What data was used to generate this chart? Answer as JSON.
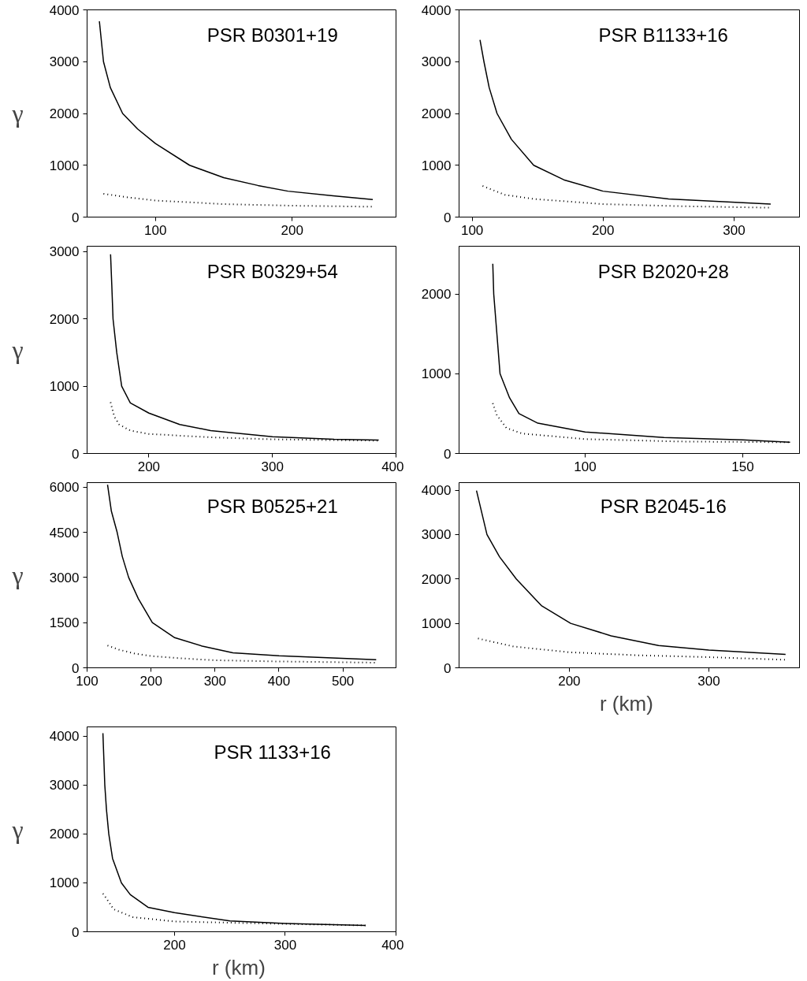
{
  "chart_data": [
    {
      "type": "line",
      "title": "PSR B0301+19",
      "ylabel": "γ",
      "xlim": [
        50,
        276
      ],
      "ylim": [
        0,
        4000
      ],
      "xticks": [
        100,
        200
      ],
      "yticks": [
        0,
        1000,
        2000,
        3000,
        4000
      ],
      "series": [
        {
          "line_style": "solid",
          "color": "#000000",
          "x": [
            59,
            62,
            67,
            76,
            87,
            100,
            125,
            150,
            175,
            197,
            230,
            259
          ],
          "values": [
            3780,
            3000,
            2500,
            2000,
            1700,
            1420,
            1000,
            760,
            610,
            500,
            410,
            340
          ]
        },
        {
          "line_style": "dotted",
          "color": "#000000",
          "x": [
            62,
            80,
            100,
            150,
            200,
            259
          ],
          "values": [
            450,
            380,
            320,
            250,
            220,
            200
          ]
        }
      ]
    },
    {
      "type": "line",
      "title": "PSR B1133+16",
      "xlim": [
        90,
        350
      ],
      "ylim": [
        0,
        4000
      ],
      "xticks": [
        100,
        200,
        300
      ],
      "yticks": [
        0,
        1000,
        2000,
        3000,
        4000
      ],
      "series": [
        {
          "line_style": "solid",
          "color": "#000000",
          "x": [
            106,
            109,
            113,
            119,
            130,
            147,
            170,
            200,
            250,
            328
          ],
          "values": [
            3420,
            3000,
            2500,
            2000,
            1500,
            1000,
            720,
            500,
            350,
            250
          ]
        },
        {
          "line_style": "dotted",
          "color": "#000000",
          "x": [
            108,
            125,
            147,
            200,
            260,
            328
          ],
          "values": [
            600,
            430,
            350,
            250,
            210,
            180
          ]
        }
      ]
    },
    {
      "type": "line",
      "title": "PSR B0329+54",
      "ylabel": "γ",
      "xlim": [
        150,
        400
      ],
      "ylim": [
        0,
        3080
      ],
      "xticks": [
        200,
        300,
        400
      ],
      "yticks": [
        0,
        1000,
        2000,
        3000
      ],
      "series": [
        {
          "line_style": "solid",
          "color": "#000000",
          "x": [
            169,
            170,
            171,
            174,
            178,
            185,
            200,
            225,
            250,
            300,
            350,
            386
          ],
          "values": [
            2960,
            2500,
            2000,
            1500,
            1000,
            750,
            600,
            430,
            340,
            250,
            210,
            200
          ]
        },
        {
          "line_style": "dotted",
          "color": "#000000",
          "x": [
            169,
            172,
            176,
            185,
            200,
            250,
            300,
            386
          ],
          "values": [
            760,
            550,
            430,
            340,
            290,
            240,
            210,
            190
          ]
        }
      ]
    },
    {
      "type": "line",
      "title": "PSR B2020+28",
      "xlim": [
        60,
        168
      ],
      "ylim": [
        0,
        2600
      ],
      "xticks": [
        100,
        150
      ],
      "yticks": [
        0,
        1000,
        2000
      ],
      "series": [
        {
          "line_style": "solid",
          "color": "#000000",
          "x": [
            70.7,
            71,
            72,
            73,
            76,
            79,
            85,
            100,
            125,
            150,
            165
          ],
          "values": [
            2380,
            2000,
            1500,
            1000,
            700,
            500,
            380,
            270,
            200,
            170,
            140
          ]
        },
        {
          "line_style": "dotted",
          "color": "#000000",
          "x": [
            70.7,
            72,
            75,
            80,
            100,
            130,
            165
          ],
          "values": [
            630,
            480,
            320,
            250,
            180,
            150,
            140
          ]
        }
      ]
    },
    {
      "type": "line",
      "title": "PSR B0525+21",
      "ylabel": "γ",
      "xlim": [
        100,
        583
      ],
      "ylim": [
        0,
        6150
      ],
      "xticks": [
        100,
        200,
        300,
        400,
        500
      ],
      "yticks": [
        0,
        1500,
        3000,
        4500,
        6000
      ],
      "series": [
        {
          "line_style": "solid",
          "color": "#000000",
          "x": [
            132,
            138,
            147,
            155,
            165,
            180,
            202,
            237,
            280,
            328,
            400,
            552
          ],
          "values": [
            6080,
            5200,
            4500,
            3700,
            3000,
            2300,
            1500,
            1000,
            720,
            500,
            400,
            270
          ]
        },
        {
          "line_style": "dotted",
          "color": "#000000",
          "x": [
            132,
            150,
            175,
            200,
            250,
            300,
            400,
            552
          ],
          "values": [
            740,
            600,
            470,
            390,
            310,
            250,
            210,
            170
          ]
        }
      ]
    },
    {
      "type": "line",
      "title": "PSR B2045-16",
      "xlabel": "r  (km)",
      "xlim": [
        121,
        365
      ],
      "ylim": [
        0,
        4170
      ],
      "xticks": [
        200,
        300
      ],
      "yticks": [
        0,
        1000,
        2000,
        3000,
        4000
      ],
      "series": [
        {
          "line_style": "solid",
          "color": "#000000",
          "x": [
            133.5,
            141,
            150,
            162,
            180,
            201,
            230,
            264,
            300,
            355
          ],
          "values": [
            3990,
            3000,
            2500,
            2000,
            1400,
            1000,
            720,
            500,
            400,
            300
          ]
        },
        {
          "line_style": "dotted",
          "color": "#000000",
          "x": [
            134.6,
            160,
            200,
            250,
            300,
            355
          ],
          "values": [
            660,
            480,
            350,
            280,
            240,
            180
          ]
        }
      ]
    },
    {
      "type": "line",
      "title": "PSR 1133+16",
      "ylabel": "γ",
      "xlabel": "r  (km)",
      "xlim": [
        121,
        400
      ],
      "ylim": [
        0,
        4190
      ],
      "xticks": [
        200,
        300,
        400
      ],
      "yticks": [
        0,
        1000,
        2000,
        3000,
        4000
      ],
      "series": [
        {
          "line_style": "solid",
          "color": "#000000",
          "x": [
            135.3,
            137,
            138.5,
            140.6,
            144,
            152,
            160,
            176,
            200,
            250,
            300,
            372.5
          ],
          "values": [
            4060,
            3000,
            2500,
            2000,
            1500,
            1000,
            760,
            500,
            390,
            220,
            170,
            130
          ]
        },
        {
          "line_style": "dotted",
          "color": "#000000",
          "x": [
            135.3,
            140,
            145,
            162,
            200,
            300,
            372.5
          ],
          "values": [
            780,
            630,
            460,
            300,
            210,
            160,
            130
          ]
        }
      ]
    }
  ]
}
